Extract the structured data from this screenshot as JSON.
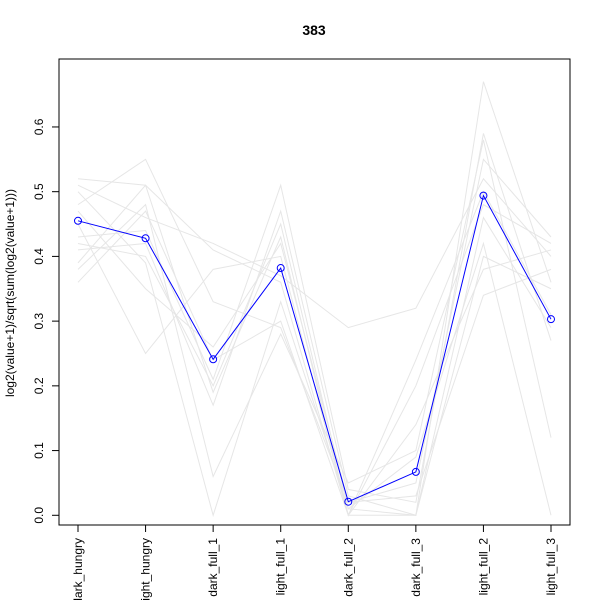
{
  "chart_data": {
    "type": "line",
    "title": "383",
    "xlabel": "",
    "ylabel": "log2(value+1)/sqrt(sum(log2(value+1)))",
    "categories": [
      "dark_hungry",
      "light_hungry",
      "dark_full_1",
      "light_full_1",
      "dark_full_2",
      "dark_full_3",
      "light_full_2",
      "light_full_3"
    ],
    "ylim": [
      -0.015,
      0.705
    ],
    "yticks": [
      0.0,
      0.1,
      0.2,
      0.3,
      0.4,
      0.5,
      0.6
    ],
    "ytick_labels": [
      "0.0",
      "0.1",
      "0.2",
      "0.3",
      "0.4",
      "0.5",
      "0.6"
    ],
    "grid": false,
    "legend": "none",
    "highlight_color": "#0000ff",
    "background_color": "#e6e6e6",
    "series": [
      {
        "values": [
          0.455,
          0.428,
          0.241,
          0.382,
          0.021,
          0.067,
          0.494,
          0.303
        ],
        "highlight": true
      },
      {
        "values": [
          0.52,
          0.51,
          0.19,
          0.43,
          0.0,
          0.0,
          0.67,
          0.36
        ]
      },
      {
        "values": [
          0.48,
          0.55,
          0.33,
          0.29,
          0.02,
          0.05,
          0.55,
          0.43
        ]
      },
      {
        "values": [
          0.43,
          0.44,
          0.21,
          0.51,
          0.04,
          0.02,
          0.59,
          0.27
        ]
      },
      {
        "values": [
          0.5,
          0.39,
          0.0,
          0.33,
          0.01,
          0.09,
          0.42,
          0.0
        ]
      },
      {
        "values": [
          0.36,
          0.47,
          0.24,
          0.3,
          0.0,
          0.14,
          0.38,
          0.41
        ]
      },
      {
        "values": [
          0.51,
          0.46,
          0.42,
          0.37,
          0.29,
          0.32,
          0.52,
          0.4
        ]
      },
      {
        "values": [
          0.41,
          0.42,
          0.17,
          0.47,
          0.03,
          0.0,
          0.46,
          0.29
        ]
      },
      {
        "values": [
          0.45,
          0.25,
          0.38,
          0.4,
          0.0,
          0.2,
          0.48,
          0.42
        ]
      },
      {
        "values": [
          0.38,
          0.48,
          0.06,
          0.28,
          0.05,
          0.1,
          0.58,
          0.12
        ]
      },
      {
        "values": [
          0.47,
          0.35,
          0.26,
          0.42,
          0.02,
          0.03,
          0.34,
          0.38
        ]
      },
      {
        "values": [
          0.39,
          0.51,
          0.41,
          0.36,
          0.0,
          0.24,
          0.5,
          0.31
        ]
      },
      {
        "values": [
          0.42,
          0.4,
          0.2,
          0.45,
          0.01,
          0.0,
          0.4,
          0.35
        ]
      }
    ]
  }
}
